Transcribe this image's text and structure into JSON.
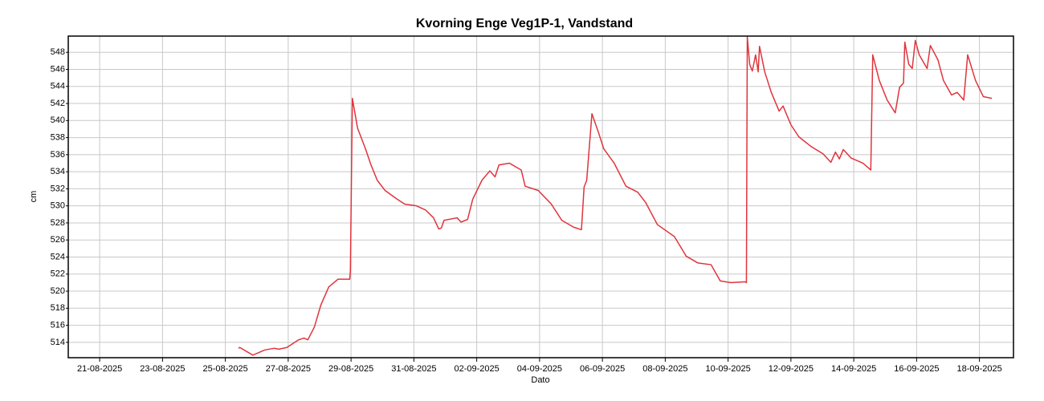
{
  "chart_data": {
    "type": "line",
    "title": "Kvorning Enge Veg1P-1, Vandstand",
    "x_label": "Dato",
    "y_label": "cm",
    "grid": true,
    "xlim": [
      "2025-08-20T00:00",
      "2025-09-19T02:00"
    ],
    "xticks": [
      {
        "value": "2025-08-21T00:00",
        "label": "21-08-2025"
      },
      {
        "value": "2025-08-23T00:00",
        "label": "23-08-2025"
      },
      {
        "value": "2025-08-25T00:00",
        "label": "25-08-2025"
      },
      {
        "value": "2025-08-27T00:00",
        "label": "27-08-2025"
      },
      {
        "value": "2025-08-29T00:00",
        "label": "29-08-2025"
      },
      {
        "value": "2025-08-31T00:00",
        "label": "31-08-2025"
      },
      {
        "value": "2025-09-02T00:00",
        "label": "02-09-2025"
      },
      {
        "value": "2025-09-04T00:00",
        "label": "04-09-2025"
      },
      {
        "value": "2025-09-06T00:00",
        "label": "06-09-2025"
      },
      {
        "value": "2025-09-08T00:00",
        "label": "08-09-2025"
      },
      {
        "value": "2025-09-10T00:00",
        "label": "10-09-2025"
      },
      {
        "value": "2025-09-12T00:00",
        "label": "12-09-2025"
      },
      {
        "value": "2025-09-14T00:00",
        "label": "14-09-2025"
      },
      {
        "value": "2025-09-16T00:00",
        "label": "16-09-2025"
      },
      {
        "value": "2025-09-18T00:00",
        "label": "18-09-2025"
      }
    ],
    "ylim": [
      512.2,
      549.9
    ],
    "yticks": [
      514,
      516,
      518,
      520,
      522,
      524,
      526,
      528,
      530,
      532,
      534,
      536,
      538,
      540,
      542,
      544,
      546,
      548
    ],
    "x": [
      "2025-08-25T10:00",
      "2025-08-25T11:00",
      "2025-08-25T21:00",
      "2025-08-26T06:00",
      "2025-08-26T13:00",
      "2025-08-26T17:00",
      "2025-08-26T23:00",
      "2025-08-27T08:00",
      "2025-08-27T12:00",
      "2025-08-27T15:00",
      "2025-08-27T20:00",
      "2025-08-28T01:00",
      "2025-08-28T07:00",
      "2025-08-28T14:00",
      "2025-08-28T23:00",
      "2025-08-28T23:30",
      "2025-08-29T01:00",
      "2025-08-29T05:00",
      "2025-08-29T11:00",
      "2025-08-29T15:00",
      "2025-08-29T20:00",
      "2025-08-30T02:00",
      "2025-08-30T11:00",
      "2025-08-30T17:00",
      "2025-08-31T02:00",
      "2025-08-31T09:00",
      "2025-08-31T15:00",
      "2025-08-31T19:00",
      "2025-08-31T21:00",
      "2025-08-31T23:00",
      "2025-09-01T09:00",
      "2025-09-01T12:00",
      "2025-09-01T17:00",
      "2025-09-01T21:00",
      "2025-09-02T04:00",
      "2025-09-02T10:00",
      "2025-09-02T14:00",
      "2025-09-02T17:00",
      "2025-09-03T01:00",
      "2025-09-03T10:00",
      "2025-09-03T13:00",
      "2025-09-03T23:00",
      "2025-09-04T09:00",
      "2025-09-04T17:00",
      "2025-09-05T02:00",
      "2025-09-05T08:00",
      "2025-09-05T10:00",
      "2025-09-05T12:00",
      "2025-09-05T16:00",
      "2025-09-05T21:00",
      "2025-09-06T01:00",
      "2025-09-06T09:00",
      "2025-09-06T18:00",
      "2025-09-07T03:00",
      "2025-09-07T09:00",
      "2025-09-07T18:00",
      "2025-09-08T07:00",
      "2025-09-08T16:00",
      "2025-09-09T01:00",
      "2025-09-09T11:00",
      "2025-09-09T18:00",
      "2025-09-10T02:00",
      "2025-09-10T13:00",
      "2025-09-10T14:00",
      "2025-09-10T14:40",
      "2025-09-10T16:30",
      "2025-09-10T18:30",
      "2025-09-10T21:00",
      "2025-09-10T23:00",
      "2025-09-11T00:00",
      "2025-09-11T04:00",
      "2025-09-11T09:00",
      "2025-09-11T15:00",
      "2025-09-11T18:00",
      "2025-09-12T00:00",
      "2025-09-12T06:00",
      "2025-09-12T15:00",
      "2025-09-13T00:30",
      "2025-09-13T06:30",
      "2025-09-13T10:00",
      "2025-09-13T13:00",
      "2025-09-13T16:00",
      "2025-09-13T22:00",
      "2025-09-14T07:00",
      "2025-09-14T13:00",
      "2025-09-14T14:30",
      "2025-09-14T19:30",
      "2025-09-15T01:30",
      "2025-09-15T07:40",
      "2025-09-15T11:00",
      "2025-09-15T14:00",
      "2025-09-15T15:00",
      "2025-09-15T18:00",
      "2025-09-15T20:40",
      "2025-09-15T23:00",
      "2025-09-16T02:00",
      "2025-09-16T08:00",
      "2025-09-16T10:30",
      "2025-09-16T16:20",
      "2025-09-16T20:30",
      "2025-09-17T02:40",
      "2025-09-17T07:00",
      "2025-09-17T12:00",
      "2025-09-17T15:00",
      "2025-09-17T21:00",
      "2025-09-18T03:00",
      "2025-09-18T09:30"
    ],
    "series": [
      {
        "name": "Vandstand",
        "color": "#e0343c",
        "values": [
          513.3,
          513.4,
          512.5,
          513.1,
          513.3,
          513.2,
          513.4,
          514.3,
          514.5,
          514.3,
          515.8,
          518.4,
          520.5,
          521.4,
          521.4,
          522.4,
          542.6,
          539.1,
          536.7,
          534.9,
          533.0,
          531.8,
          530.8,
          530.2,
          530.0,
          529.5,
          528.6,
          527.3,
          527.4,
          528.3,
          528.6,
          528.1,
          528.4,
          530.8,
          533.0,
          534.1,
          533.4,
          534.8,
          535.0,
          534.2,
          532.3,
          531.8,
          530.2,
          528.3,
          527.5,
          527.2,
          532.2,
          533.0,
          540.8,
          538.6,
          536.7,
          535.0,
          532.3,
          531.6,
          530.4,
          527.8,
          526.4,
          524.1,
          523.3,
          523.1,
          521.2,
          521.0,
          521.1,
          521.0,
          549.8,
          546.6,
          545.8,
          547.7,
          545.7,
          548.7,
          545.7,
          543.3,
          541.1,
          541.7,
          539.5,
          538.1,
          537.0,
          536.1,
          535.1,
          536.3,
          535.5,
          536.6,
          535.6,
          535.0,
          534.2,
          547.7,
          544.7,
          542.4,
          540.9,
          543.9,
          544.4,
          549.2,
          546.6,
          546.1,
          549.4,
          547.7,
          546.1,
          548.8,
          547.1,
          544.7,
          543.0,
          543.3,
          542.4,
          547.7,
          544.7,
          542.8,
          542.6
        ]
      }
    ]
  }
}
